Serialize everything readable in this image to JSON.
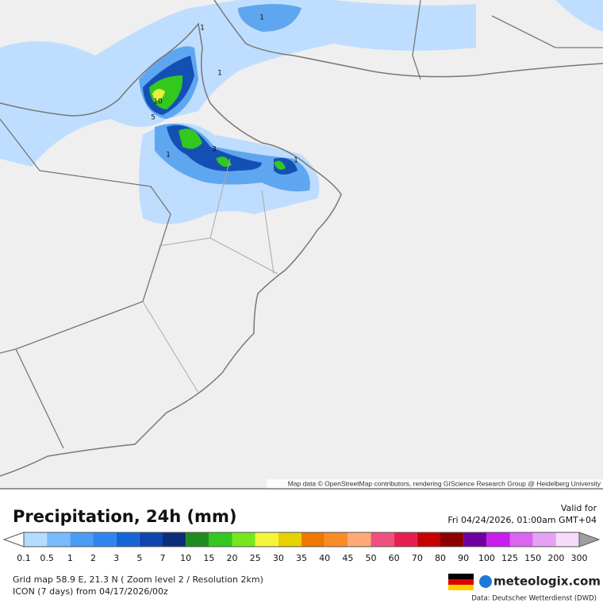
{
  "map": {
    "attribution": "Map data © OpenStreetMap contributors, rendering GIScience Research Group @ Heidelberg University",
    "contour_labels": [
      "1",
      "1",
      "10",
      "5",
      "1",
      "3",
      "1",
      "1"
    ]
  },
  "legend": {
    "title": "Precipitation, 24h (mm)",
    "valid_label": "Valid for",
    "valid_time": "Fri 04/24/2026, 01:00am GMT+04",
    "labels": [
      "0.1",
      "0.5",
      "1",
      "2",
      "3",
      "5",
      "7",
      "10",
      "15",
      "20",
      "25",
      "30",
      "35",
      "40",
      "45",
      "50",
      "60",
      "70",
      "80",
      "90",
      "100",
      "125",
      "150",
      "200",
      "300"
    ],
    "colors": [
      "#b4dcff",
      "#78bbff",
      "#4a9df5",
      "#2f86f0",
      "#1565d8",
      "#0f45b0",
      "#0a2e7c",
      "#1e8c1e",
      "#32c81e",
      "#78e61e",
      "#f5f53c",
      "#e6d200",
      "#f07800",
      "#fa8c28",
      "#ffaa78",
      "#f0507d",
      "#e61e50",
      "#c80000",
      "#8c0000",
      "#6e00a0",
      "#c81ef0",
      "#dc64f0",
      "#e6a0f5",
      "#f5dcfa",
      "#c8c8c8"
    ],
    "above_color": "#a0a0a0"
  },
  "footer": {
    "grid_info": "Grid map 58.9 E, 21.3 N ( Zoom level 2 / Resolution 2km)",
    "model_info": "ICON (7 days) from  04/17/2026/00z",
    "brand": "meteologix.com",
    "data_source": "Data: Deutscher Wetterdienst (DWD)"
  }
}
